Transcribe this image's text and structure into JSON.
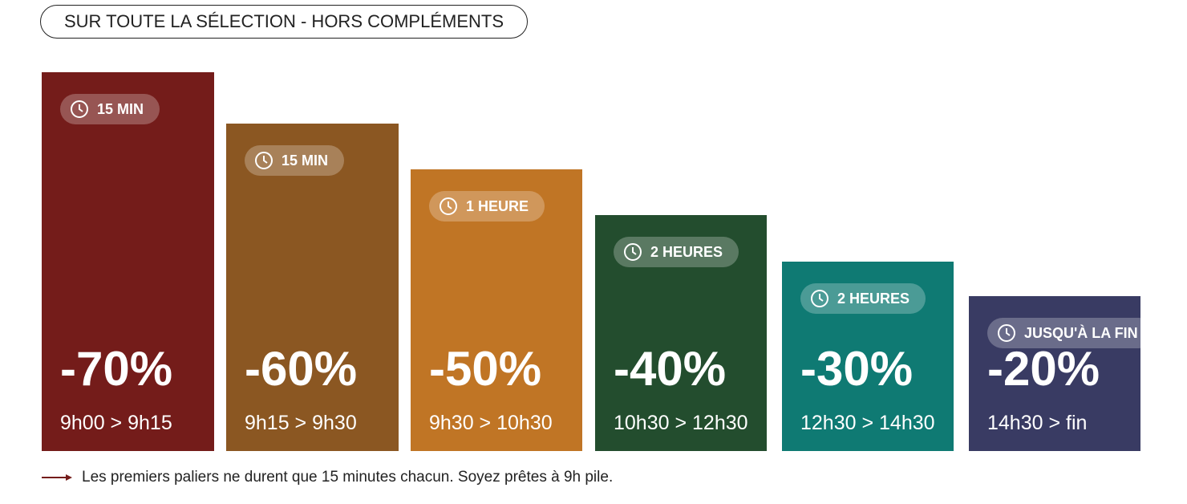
{
  "header": {
    "title": "SUR TOUTE LA SÉLECTION - HORS COMPLÉMENTS"
  },
  "tiers": [
    {
      "duration": "15 MIN",
      "discount": "-70%",
      "time": "9h00 > 9h15"
    },
    {
      "duration": "15 MIN",
      "discount": "-60%",
      "time": "9h15 > 9h30"
    },
    {
      "duration": "1 HEURE",
      "discount": "-50%",
      "time": "9h30 > 10h30"
    },
    {
      "duration": "2 HEURES",
      "discount": "-40%",
      "time": "10h30 > 12h30"
    },
    {
      "duration": "2 HEURES",
      "discount": "-30%",
      "time": "12h30 > 14h30"
    },
    {
      "duration": "JUSQU'À LA FIN",
      "discount": "-20%",
      "time": "14h30 > fin"
    }
  ],
  "note": "Les premiers paliers ne durent que 15 minutes chacun. Soyez prêtes à 9h pile."
}
